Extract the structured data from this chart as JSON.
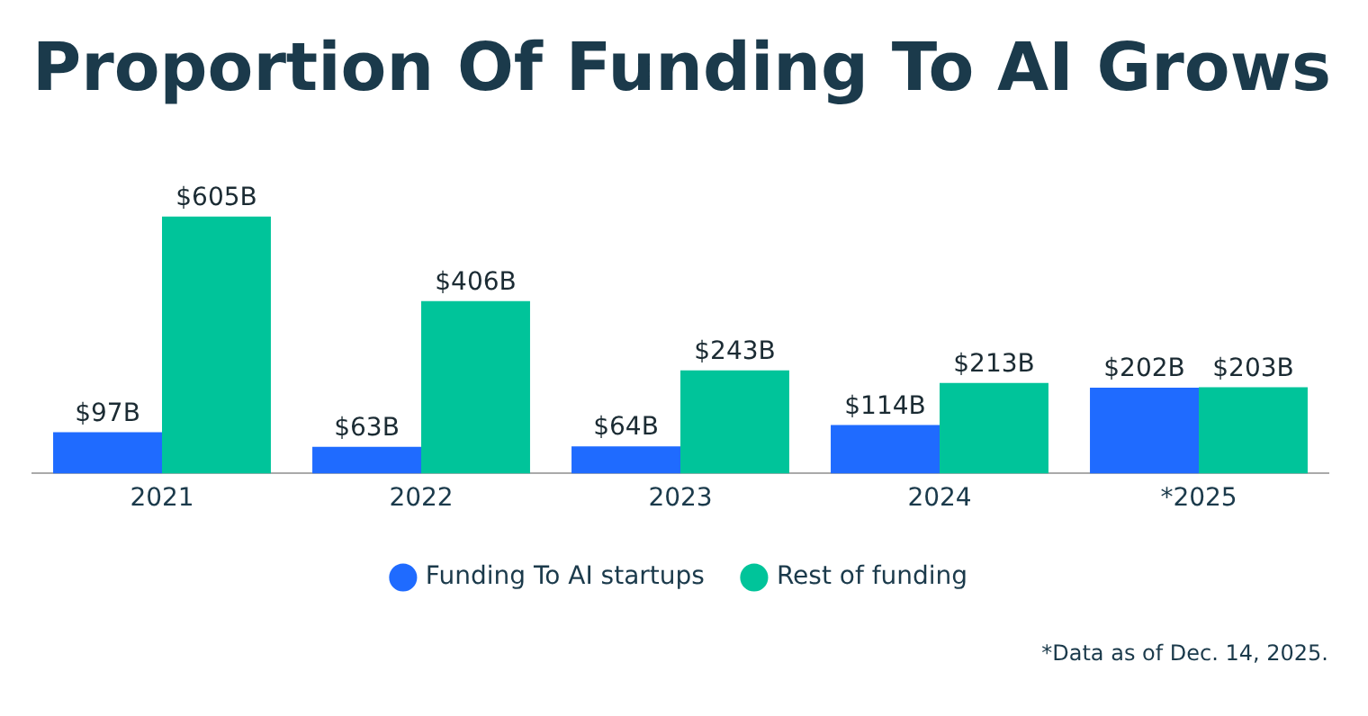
{
  "chart_data": {
    "type": "bar",
    "title": "Proportion Of Funding To AI Grows",
    "categories": [
      "2021",
      "2022",
      "2023",
      "2024",
      "*2025"
    ],
    "series": [
      {
        "name": "Funding To AI startups",
        "color": "#1f6bff",
        "values": [
          97,
          63,
          64,
          114,
          202
        ],
        "value_labels": [
          "$97B",
          "$63B",
          "$64B",
          "$114B",
          "$202B"
        ]
      },
      {
        "name": "Rest of funding",
        "color": "#00c49a",
        "values": [
          605,
          406,
          243,
          213,
          203
        ],
        "value_labels": [
          "$605B",
          "$406B",
          "$243B",
          "$213B",
          "$203B"
        ]
      }
    ],
    "legend": "bottom",
    "grid": false,
    "annotations": [
      "*Data as of Dec. 14, 2025."
    ]
  }
}
